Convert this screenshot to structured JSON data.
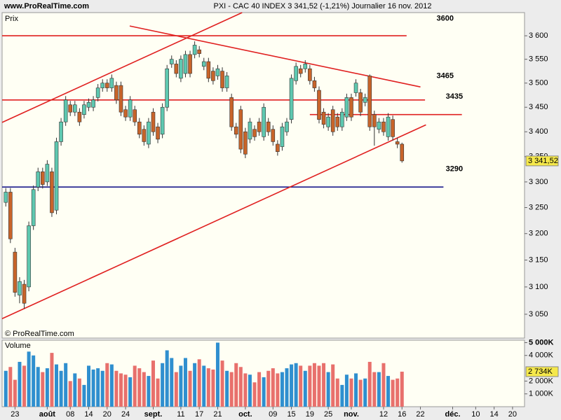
{
  "header": {
    "site": "www.ProRealTime.com",
    "title": "PXI - CAC 40 INDEX    3 341,52 (-1,21%)    Journalier  16 nov. 2012"
  },
  "chart_data": [
    {
      "type": "candlestick",
      "panel_label": "Prix",
      "copyright": "© ProRealTime.com",
      "log_scale": true,
      "up_color": "#5ec8b0",
      "down_color": "#c8642a",
      "xlim": [
        -0.8,
        112.6
      ],
      "ylim": [
        3007,
        3650
      ],
      "yticks": [
        {
          "value": 3050,
          "label": "3 050"
        },
        {
          "value": 3100,
          "label": "3 100"
        },
        {
          "value": 3150,
          "label": "3 150"
        },
        {
          "value": 3200,
          "label": "3 200"
        },
        {
          "value": 3250,
          "label": "3 250"
        },
        {
          "value": 3300,
          "label": "3 300"
        },
        {
          "value": 3350,
          "label": "3 350"
        },
        {
          "value": 3400,
          "label": "3 400"
        },
        {
          "value": 3450,
          "label": "3 450"
        },
        {
          "value": 3500,
          "label": "3 500"
        },
        {
          "value": 3550,
          "label": "3 550"
        },
        {
          "value": 3600,
          "label": "3 600"
        }
      ],
      "xticks": [
        {
          "value": 2,
          "label": "23"
        },
        {
          "value": 9,
          "label": "août"
        },
        {
          "value": 14,
          "label": "08"
        },
        {
          "value": 18,
          "label": "14"
        },
        {
          "value": 22,
          "label": "20"
        },
        {
          "value": 26,
          "label": "24"
        },
        {
          "value": 32,
          "label": "sept."
        },
        {
          "value": 38,
          "label": "11"
        },
        {
          "value": 42,
          "label": "17"
        },
        {
          "value": 46,
          "label": "21"
        },
        {
          "value": 52,
          "label": "oct."
        },
        {
          "value": 58,
          "label": "09"
        },
        {
          "value": 62,
          "label": "15"
        },
        {
          "value": 66,
          "label": "19"
        },
        {
          "value": 70,
          "label": "25"
        },
        {
          "value": 75,
          "label": "nov."
        },
        {
          "value": 82,
          "label": "12"
        },
        {
          "value": 86,
          "label": "16"
        },
        {
          "value": 90,
          "label": "22"
        },
        {
          "value": 97,
          "label": "déc."
        },
        {
          "value": 102,
          "label": "10"
        },
        {
          "value": 106,
          "label": "14"
        },
        {
          "value": 110,
          "label": "20"
        }
      ],
      "open": [
        3260,
        3280,
        3165,
        3085,
        3105,
        3100,
        3215,
        3290,
        3320,
        3300,
        3320,
        3245,
        3380,
        3420,
        3455,
        3440,
        3440,
        3435,
        3450,
        3450,
        3470,
        3490,
        3500,
        3490,
        3495,
        3495,
        3445,
        3430,
        3445,
        3420,
        3405,
        3375,
        3440,
        3410,
        3395,
        3450,
        3540,
        3540,
        3510,
        3520,
        3560,
        3560,
        3570,
        3535,
        3545,
        3525,
        3515,
        3525,
        3490,
        3470,
        3410,
        3445,
        3400,
        3385,
        3405,
        3420,
        3390,
        3420,
        3405,
        3375,
        3370,
        3400,
        3425,
        3505,
        3530,
        3530,
        3530,
        3505,
        3485,
        3440,
        3410,
        3445,
        3430,
        3410,
        3430,
        3470,
        3480,
        3480,
        3460,
        3515,
        3435,
        3405,
        3420,
        3390,
        3425,
        3380,
        3375
      ],
      "high": [
        3288,
        3288,
        3173,
        3118,
        3113,
        3223,
        3293,
        3328,
        3328,
        3343,
        3328,
        3388,
        3428,
        3473,
        3463,
        3463,
        3448,
        3463,
        3468,
        3473,
        3498,
        3508,
        3508,
        3518,
        3503,
        3503,
        3453,
        3473,
        3453,
        3428,
        3413,
        3428,
        3448,
        3418,
        3458,
        3538,
        3558,
        3548,
        3558,
        3568,
        3568,
        3588,
        3578,
        3553,
        3553,
        3533,
        3538,
        3533,
        3523,
        3478,
        3418,
        3453,
        3408,
        3428,
        3413,
        3428,
        3458,
        3428,
        3413,
        3383,
        3418,
        3428,
        3518,
        3543,
        3538,
        3548,
        3538,
        3513,
        3493,
        3448,
        3438,
        3453,
        3438,
        3448,
        3478,
        3478,
        3508,
        3488,
        3478,
        3518,
        3443,
        3428,
        3428,
        3438,
        3433,
        3388,
        3378
      ],
      "low": [
        3252,
        3182,
        3082,
        3070,
        3060,
        3092,
        3207,
        3282,
        3287,
        3292,
        3232,
        3237,
        3372,
        3412,
        3432,
        3432,
        3412,
        3427,
        3442,
        3442,
        3462,
        3482,
        3482,
        3482,
        3457,
        3432,
        3422,
        3422,
        3412,
        3387,
        3372,
        3367,
        3392,
        3377,
        3387,
        3442,
        3532,
        3512,
        3502,
        3512,
        3512,
        3552,
        3554,
        3527,
        3502,
        3497,
        3507,
        3482,
        3482,
        3402,
        3387,
        3357,
        3347,
        3377,
        3382,
        3392,
        3382,
        3392,
        3372,
        3352,
        3362,
        3392,
        3417,
        3497,
        3512,
        3522,
        3497,
        3482,
        3417,
        3407,
        3402,
        3392,
        3402,
        3402,
        3422,
        3422,
        3472,
        3432,
        3452,
        3402,
        3372,
        3397,
        3392,
        3382,
        3382,
        3367,
        3338
      ],
      "close": [
        3280,
        3190,
        3090,
        3110,
        3070,
        3215,
        3285,
        3320,
        3295,
        3335,
        3240,
        3380,
        3420,
        3465,
        3440,
        3455,
        3420,
        3455,
        3460,
        3465,
        3490,
        3500,
        3490,
        3510,
        3465,
        3440,
        3430,
        3465,
        3420,
        3395,
        3380,
        3420,
        3400,
        3385,
        3450,
        3530,
        3550,
        3520,
        3550,
        3560,
        3520,
        3580,
        3562,
        3545,
        3510,
        3505,
        3530,
        3490,
        3515,
        3410,
        3395,
        3365,
        3355,
        3420,
        3390,
        3400,
        3450,
        3400,
        3380,
        3360,
        3410,
        3420,
        3510,
        3535,
        3520,
        3540,
        3505,
        3490,
        3425,
        3415,
        3430,
        3400,
        3410,
        3440,
        3470,
        3430,
        3500,
        3440,
        3470,
        3410,
        3410,
        3420,
        3400,
        3430,
        3390,
        3375,
        3341.52
      ],
      "last_label": "3 341,52",
      "lines": [
        {
          "color": "#e02020",
          "x": [
            -0.8,
            87
          ],
          "y": [
            3600,
            3600
          ]
        },
        {
          "color": "#e02020",
          "x": [
            -0.8,
            91
          ],
          "y": [
            3465,
            3465
          ]
        },
        {
          "color": "#e02020",
          "x": [
            66,
            99
          ],
          "y": [
            3435,
            3435
          ]
        },
        {
          "color": "#1a1a8c",
          "x": [
            -0.8,
            95
          ],
          "y": [
            3290,
            3290
          ]
        },
        {
          "color": "#e02020",
          "x": [
            26.9,
            90
          ],
          "y": [
            3621,
            3492
          ]
        },
        {
          "color": "#e02020",
          "x": [
            -0.8,
            51.3
          ],
          "y": [
            3419,
            3650
          ]
        },
        {
          "color": "#e02020",
          "x": [
            -0.8,
            91.2
          ],
          "y": [
            3042,
            3414
          ]
        }
      ],
      "level_labels": [
        {
          "value": 3600,
          "x": 93.5,
          "y": 3637
        },
        {
          "value": 3465,
          "x": 93.5,
          "y": 3515
        },
        {
          "value": 3435,
          "x": 95.5,
          "y": 3472
        },
        {
          "value": 3290,
          "x": 95.5,
          "y": 3325
        }
      ]
    },
    {
      "type": "bar",
      "panel_label": "Volume",
      "up_color": "#2f8fcf",
      "down_color": "#e8706c",
      "ylim": [
        0,
        5190
      ],
      "yticks": [
        {
          "value": 1000,
          "label": "1 000K"
        },
        {
          "value": 2000,
          "label": "2 000K"
        },
        {
          "value": 4000,
          "label": "4 000K"
        },
        {
          "value": 5000,
          "label": "5 000K"
        }
      ],
      "values": [
        2800,
        3100,
        2100,
        3500,
        3200,
        4300,
        4000,
        3100,
        2700,
        3000,
        4200,
        3300,
        2800,
        3400,
        2000,
        2600,
        2200,
        1700,
        3200,
        2900,
        3000,
        2800,
        3400,
        3300,
        2800,
        2600,
        2500,
        2300,
        3200,
        3000,
        2700,
        2400,
        3600,
        2200,
        3400,
        4400,
        3800,
        2700,
        3200,
        3800,
        2800,
        3400,
        3700,
        3200,
        3000,
        2900,
        5000,
        3600,
        2800,
        2700,
        3400,
        3100,
        2600,
        2500,
        1900,
        2700,
        2300,
        2800,
        3000,
        2600,
        2700,
        3000,
        3300,
        3400,
        3200,
        2800,
        3200,
        3400,
        3200,
        3400,
        2700,
        3300,
        2200,
        1700,
        2500,
        2200,
        2600,
        2100,
        2200,
        3500,
        2700,
        2700,
        3400,
        2400,
        2100,
        2200,
        2734
      ],
      "last_label": "2 734K"
    }
  ]
}
